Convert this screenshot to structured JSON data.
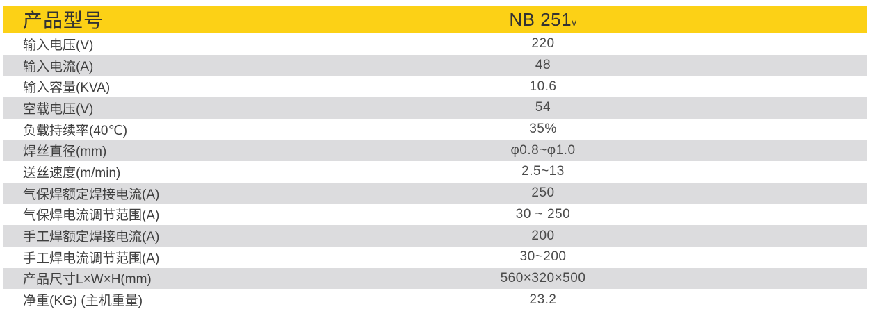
{
  "colors": {
    "header_bg": "#FCD116",
    "alt_row_bg": "#DCDCDE",
    "header_text": "#333333",
    "label_text": "#3F3F3F",
    "value_text": "#4A4A4A"
  },
  "table": {
    "header": {
      "label": "产品型号",
      "model": "NB 251",
      "model_suffix": "v"
    },
    "rows": [
      {
        "label": "输入电压(V)",
        "value": "220"
      },
      {
        "label": "输入电流(A)",
        "value": "48"
      },
      {
        "label": "输入容量(KVA)",
        "value": "10.6"
      },
      {
        "label": "空载电压(V)",
        "value": "54"
      },
      {
        "label": "负载持续率(40℃)",
        "value": "35%"
      },
      {
        "label": "焊丝直径(mm)",
        "value": "φ0.8~φ1.0"
      },
      {
        "label": "送丝速度(m/min)",
        "value": "2.5~13"
      },
      {
        "label": "气保焊额定焊接电流(A)",
        "value": "250"
      },
      {
        "label": "气保焊电流调节范围(A)",
        "value": "30 ~ 250"
      },
      {
        "label": "手工焊额定焊接电流(A)",
        "value": "200"
      },
      {
        "label": "手工焊电流调节范围(A)",
        "value": "30~200"
      },
      {
        "label": "产品尺寸L×W×H(mm)",
        "value": "560×320×500"
      },
      {
        "label": "净重(KG) (主机重量)",
        "value": "23.2"
      }
    ]
  }
}
